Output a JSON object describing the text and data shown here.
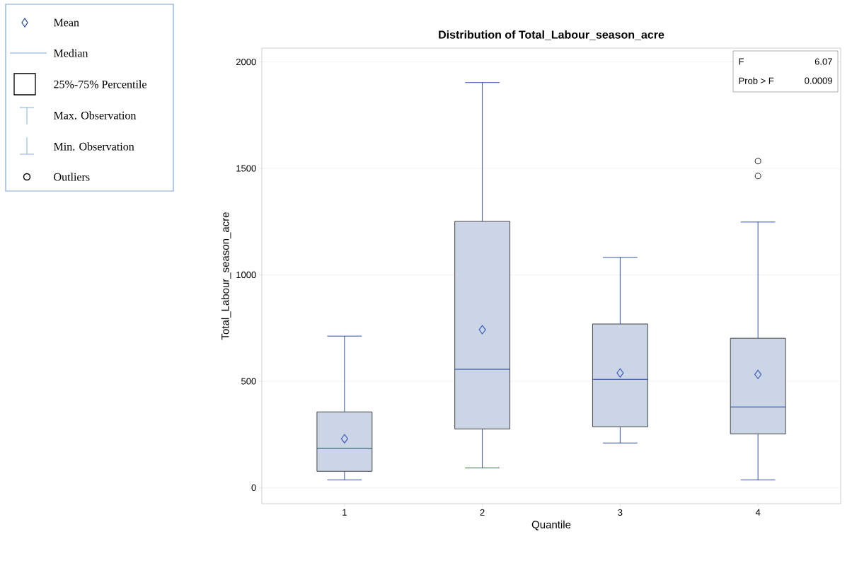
{
  "chart_data": {
    "type": "box",
    "title": "Distribution of Total_Labour_season_acre",
    "xlabel": "Quantile",
    "ylabel": "Total_Labour_season_acre",
    "categories": [
      "1",
      "2",
      "3",
      "4"
    ],
    "boxes": [
      {
        "low": 37,
        "q1": 77,
        "median": 186,
        "q3": 356,
        "high": 712,
        "mean": 230
      },
      {
        "low": 93,
        "q1": 276,
        "median": 556,
        "q3": 1251,
        "high": 1903,
        "mean": 742
      },
      {
        "low": 210,
        "q1": 286,
        "median": 509,
        "q3": 769,
        "high": 1082,
        "mean": 539
      },
      {
        "low": 37,
        "q1": 253,
        "median": 379,
        "q3": 702,
        "high": 1248,
        "mean": 532,
        "outliers": [
          1534,
          1464
        ]
      }
    ],
    "ylim": [
      -75,
      2065
    ],
    "yticks": [
      0,
      500,
      1000,
      1500,
      2000
    ],
    "grid": "y",
    "annotations": [
      "Mean",
      "Median",
      "25%-75% Percentile",
      "Max. Observation",
      "Min. Observation",
      "Outliers",
      "F",
      "6.07",
      "Prob > F",
      "0.0009"
    ]
  }
}
